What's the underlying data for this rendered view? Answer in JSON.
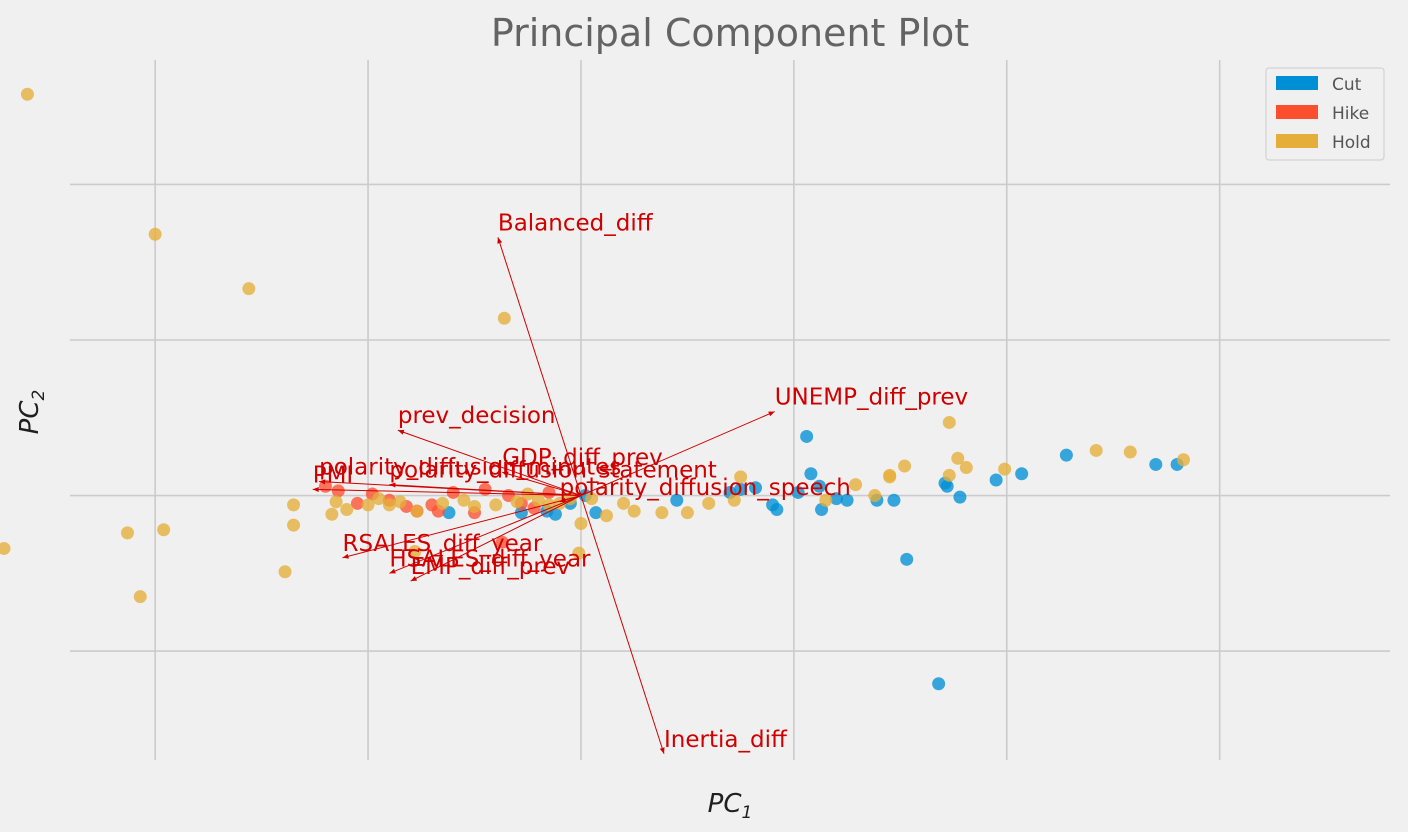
{
  "chart_data": {
    "type": "scatter",
    "title": "Principal Component Plot",
    "xlabel": "PC",
    "xlabel_sub": "1",
    "ylabel": "PC",
    "ylabel_sub": "2",
    "xlim": [
      -2.4,
      3.8
    ],
    "ylim": [
      -1.7,
      2.8
    ],
    "xticks": [
      -2,
      -1,
      0,
      1,
      2,
      3
    ],
    "yticks": [
      -1,
      0,
      1,
      2
    ],
    "tick_labels_shown": false,
    "grid": true,
    "legend_position": "top-right",
    "legend": [
      {
        "label": "Cut",
        "color": "#008fd5"
      },
      {
        "label": "Hike",
        "color": "#fc4f30"
      },
      {
        "label": "Hold",
        "color": "#e5ae38"
      }
    ],
    "series": [
      {
        "name": "Cut",
        "color": "#008fd5",
        "points": [
          [
            1.06,
            0.38
          ],
          [
            1.08,
            0.14
          ],
          [
            1.12,
            0.06
          ],
          [
            1.13,
            -0.09
          ],
          [
            1.2,
            -0.02
          ],
          [
            1.25,
            -0.03
          ],
          [
            1.39,
            -0.03
          ],
          [
            1.47,
            -0.03
          ],
          [
            1.53,
            -0.41
          ],
          [
            1.68,
            -1.21
          ],
          [
            1.71,
            0.08
          ],
          [
            1.72,
            0.06
          ],
          [
            1.78,
            -0.01
          ],
          [
            1.95,
            0.1
          ],
          [
            2.07,
            0.14
          ],
          [
            2.28,
            0.26
          ],
          [
            2.7,
            0.2
          ],
          [
            2.8,
            0.2
          ],
          [
            0.82,
            0.05
          ],
          [
            0.9,
            -0.06
          ],
          [
            0.92,
            -0.09
          ],
          [
            1.02,
            0.02
          ],
          [
            0.75,
            0.04
          ],
          [
            0.45,
            -0.03
          ],
          [
            0.7,
            0.02
          ],
          [
            0.07,
            -0.11
          ],
          [
            -0.12,
            -0.12
          ],
          [
            -0.28,
            -0.11
          ],
          [
            -0.62,
            -0.11
          ],
          [
            -0.16,
            -0.1
          ],
          [
            0.02,
            0.0
          ],
          [
            -0.05,
            -0.05
          ]
        ]
      },
      {
        "name": "Hike",
        "color": "#fc4f30",
        "points": [
          [
            -0.37,
            -0.3
          ],
          [
            -0.77,
            -0.1
          ],
          [
            -0.67,
            -0.1
          ],
          [
            -0.5,
            -0.11
          ],
          [
            -0.9,
            -0.03
          ],
          [
            -0.98,
            0.01
          ],
          [
            -1.14,
            0.03
          ],
          [
            -1.05,
            -0.05
          ],
          [
            -1.2,
            0.06
          ],
          [
            -0.34,
            0.0
          ],
          [
            -0.6,
            0.02
          ],
          [
            -0.28,
            -0.05
          ],
          [
            -0.45,
            0.04
          ],
          [
            -0.22,
            -0.08
          ],
          [
            -0.7,
            -0.06
          ],
          [
            -0.15,
            0.02
          ],
          [
            -0.82,
            -0.07
          ]
        ]
      },
      {
        "name": "Hold",
        "color": "#e5ae38",
        "points": [
          [
            -2.6,
            2.58
          ],
          [
            -2.0,
            1.68
          ],
          [
            -1.56,
            1.33
          ],
          [
            -0.36,
            1.14
          ],
          [
            -2.71,
            -0.34
          ],
          [
            -2.13,
            -0.24
          ],
          [
            -1.96,
            -0.22
          ],
          [
            -2.07,
            -0.65
          ],
          [
            -1.39,
            -0.49
          ],
          [
            -1.35,
            -0.19
          ],
          [
            -1.35,
            -0.06
          ],
          [
            -1.17,
            -0.12
          ],
          [
            -0.9,
            -0.06
          ],
          [
            -0.77,
            -0.1
          ],
          [
            -0.78,
            -0.36
          ],
          [
            -0.55,
            -0.03
          ],
          [
            -0.01,
            -0.37
          ],
          [
            0.0,
            -0.18
          ],
          [
            0.12,
            -0.13
          ],
          [
            0.25,
            -0.1
          ],
          [
            0.38,
            -0.11
          ],
          [
            0.5,
            -0.11
          ],
          [
            0.6,
            -0.05
          ],
          [
            0.72,
            -0.03
          ],
          [
            0.75,
            0.12
          ],
          [
            1.29,
            0.07
          ],
          [
            1.45,
            0.13
          ],
          [
            1.52,
            0.19
          ],
          [
            1.73,
            0.47
          ],
          [
            1.77,
            0.24
          ],
          [
            1.81,
            0.18
          ],
          [
            1.99,
            0.17
          ],
          [
            2.42,
            0.29
          ],
          [
            2.58,
            0.28
          ],
          [
            2.83,
            0.23
          ],
          [
            1.73,
            0.13
          ],
          [
            1.45,
            0.12
          ],
          [
            1.38,
            0.0
          ],
          [
            1.15,
            -0.03
          ],
          [
            -0.1,
            -0.05
          ],
          [
            -0.05,
            -0.02
          ],
          [
            -0.2,
            -0.03
          ],
          [
            -0.3,
            -0.04
          ],
          [
            -0.4,
            -0.06
          ],
          [
            -0.65,
            -0.05
          ],
          [
            -0.85,
            -0.04
          ],
          [
            -1.0,
            -0.06
          ],
          [
            -1.1,
            -0.09
          ],
          [
            -1.15,
            -0.04
          ],
          [
            -0.25,
            0.01
          ],
          [
            -0.15,
            -0.06
          ],
          [
            0.05,
            -0.02
          ],
          [
            0.2,
            -0.05
          ],
          [
            -0.5,
            -0.07
          ],
          [
            -0.95,
            -0.02
          ]
        ]
      }
    ],
    "vectors": [
      {
        "label": "Balanced_diff",
        "x": -0.39,
        "y": 1.66
      },
      {
        "label": "Inertia_diff",
        "x": 0.39,
        "y": -1.66
      },
      {
        "label": "UNEMP_diff_prev",
        "x": 0.91,
        "y": 0.54
      },
      {
        "label": "prev_decision",
        "x": -0.86,
        "y": 0.42
      },
      {
        "label": "GDP_diff_prev",
        "x": -0.37,
        "y": 0.15
      },
      {
        "label": "polarity_diffusion_minutes",
        "x": -1.23,
        "y": 0.09
      },
      {
        "label": "PMI",
        "x": -1.26,
        "y": 0.04
      },
      {
        "label": "polarity_diffusion_statement",
        "x": -0.9,
        "y": 0.07
      },
      {
        "label": "polarity_diffusion_speech",
        "x": -0.1,
        "y": -0.04
      },
      {
        "label": "RSALES_diff_year",
        "x": -1.12,
        "y": -0.4
      },
      {
        "label": "HSALES_diff_year",
        "x": -0.9,
        "y": -0.5
      },
      {
        "label": "EMP_diff_prev",
        "x": -0.8,
        "y": -0.55
      }
    ]
  }
}
